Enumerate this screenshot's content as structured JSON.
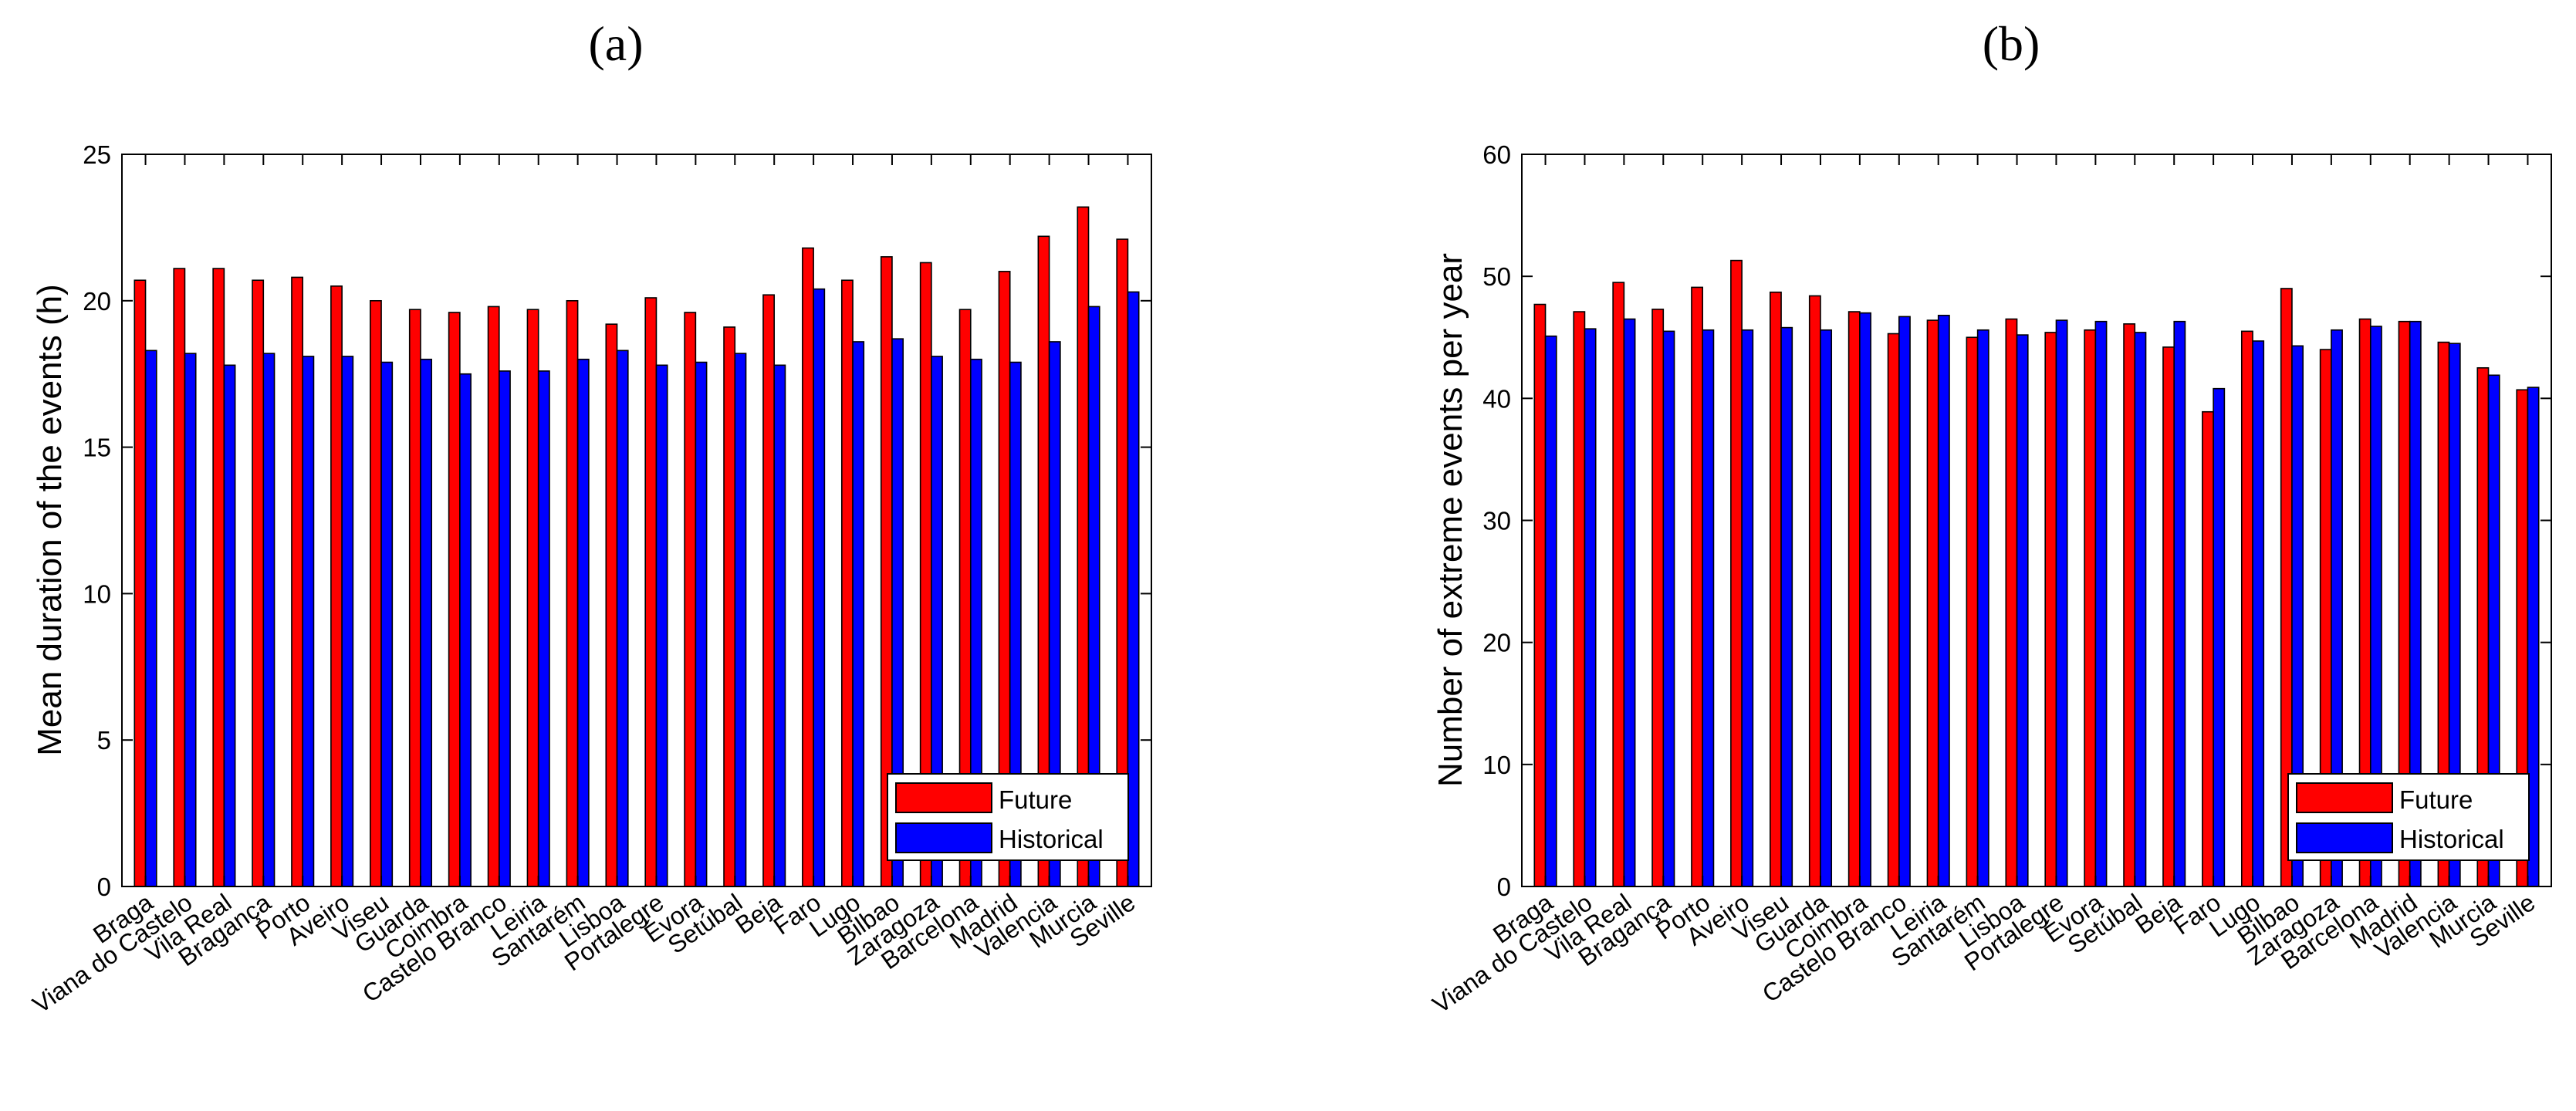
{
  "chart_data": [
    {
      "type": "bar",
      "panel_label": "(a)",
      "title": "",
      "xlabel": "",
      "ylabel": "Mean duration of the events (h)",
      "ylim": [
        0,
        25
      ],
      "yticks": [
        0,
        5,
        10,
        15,
        20,
        25
      ],
      "legend_position": "bottom-right",
      "categories": [
        "Braga",
        "Viana do Castelo",
        "Vila Real",
        "Bragança",
        "Porto",
        "Aveiro",
        "Viseu",
        "Guarda",
        "Coimbra",
        "Castelo Branco",
        "Leiria",
        "Santarém",
        "Lisboa",
        "Portalegre",
        "Évora",
        "Setúbal",
        "Beja",
        "Faro",
        "Lugo",
        "Bilbao",
        "Zaragoza",
        "Barcelona",
        "Madrid",
        "Valencia",
        "Murcia",
        "Seville"
      ],
      "series": [
        {
          "name": "Future",
          "color": "#ff0000",
          "values": [
            20.7,
            21.1,
            21.1,
            20.7,
            20.8,
            20.5,
            20.0,
            19.7,
            19.6,
            19.8,
            19.7,
            20.0,
            19.2,
            20.1,
            19.6,
            19.1,
            20.2,
            21.8,
            20.7,
            21.5,
            21.3,
            19.7,
            21.0,
            22.2,
            23.2,
            22.1
          ]
        },
        {
          "name": "Historical",
          "color": "#0000ff",
          "values": [
            18.3,
            18.2,
            17.8,
            18.2,
            18.1,
            18.1,
            17.9,
            18.0,
            17.5,
            17.6,
            17.6,
            18.0,
            18.3,
            17.8,
            17.9,
            18.2,
            17.8,
            20.4,
            18.6,
            18.7,
            18.1,
            18.0,
            17.9,
            18.6,
            19.8,
            20.3
          ]
        }
      ]
    },
    {
      "type": "bar",
      "panel_label": "(b)",
      "title": "",
      "xlabel": "",
      "ylabel": "Number of extreme events per year",
      "ylim": [
        0,
        60
      ],
      "yticks": [
        0,
        10,
        20,
        30,
        40,
        50,
        60
      ],
      "legend_position": "bottom-right",
      "categories": [
        "Braga",
        "Viana do Castelo",
        "Vila Real",
        "Bragança",
        "Porto",
        "Aveiro",
        "Viseu",
        "Guarda",
        "Coimbra",
        "Castelo Branco",
        "Leiria",
        "Santarém",
        "Lisboa",
        "Portalegre",
        "Évora",
        "Setúbal",
        "Beja",
        "Faro",
        "Lugo",
        "Bilbao",
        "Zaragoza",
        "Barcelona",
        "Madrid",
        "Valencia",
        "Murcia",
        "Seville"
      ],
      "series": [
        {
          "name": "Future",
          "color": "#ff0000",
          "values": [
            47.7,
            47.1,
            49.5,
            47.3,
            49.1,
            51.3,
            48.7,
            48.4,
            47.1,
            45.3,
            46.4,
            45.0,
            46.5,
            45.4,
            45.6,
            46.1,
            44.2,
            38.9,
            45.5,
            49.0,
            44.0,
            46.5,
            46.3,
            44.6,
            42.5,
            40.7
          ]
        },
        {
          "name": "Historical",
          "color": "#0000ff",
          "values": [
            45.1,
            45.7,
            46.5,
            45.5,
            45.6,
            45.6,
            45.8,
            45.6,
            47.0,
            46.7,
            46.8,
            45.6,
            45.2,
            46.4,
            46.3,
            45.4,
            46.3,
            40.8,
            44.7,
            44.3,
            45.6,
            45.9,
            46.3,
            44.5,
            41.9,
            40.9
          ]
        }
      ]
    }
  ]
}
